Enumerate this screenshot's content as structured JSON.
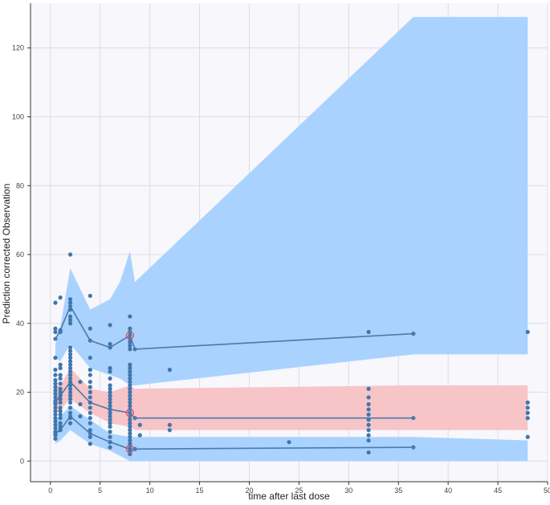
{
  "colors": {
    "background": "#ffffff",
    "plot_background": "#f7f7fc",
    "grid": "#dcdce6",
    "outer_band": "#a9d2ff",
    "median_band": "#f7c4c8",
    "line": "#4a7aab",
    "point": "#3f77ad",
    "outlier": "#e05060"
  },
  "chart_data": {
    "type": "scatter",
    "title": "",
    "xlabel": "time after last dose",
    "ylabel": "Prediction corrected Observation",
    "xlim": [
      -2,
      50
    ],
    "ylim": [
      -6,
      133
    ],
    "xticks": [
      0,
      5,
      10,
      15,
      20,
      25,
      30,
      35,
      40,
      45,
      50
    ],
    "yticks": [
      0,
      20,
      40,
      60,
      80,
      100,
      120
    ],
    "grid": true,
    "legend": "none",
    "bands": [
      {
        "name": "",
        "color": "#a9d2ff",
        "x": [
          0.5,
          1,
          2,
          4,
          6,
          7,
          8,
          8.5,
          36.5,
          48
        ],
        "upper": [
          34,
          39,
          56,
          44,
          47,
          52,
          61,
          52,
          129,
          129
        ],
        "lower": [
          30,
          29,
          34,
          27,
          25,
          24,
          22,
          22,
          31,
          31
        ]
      },
      {
        "name": "",
        "color": "#f7c4c8",
        "x": [
          0.5,
          1,
          2,
          4,
          6,
          8,
          8.5,
          36.5,
          48
        ],
        "upper": [
          22,
          22,
          27,
          21,
          20,
          22,
          21,
          22,
          22
        ],
        "lower": [
          14,
          15,
          18,
          14,
          11,
          10,
          9,
          9,
          9
        ]
      },
      {
        "name": "",
        "color": "#a9d2ff",
        "x": [
          0.5,
          1,
          2,
          4,
          6,
          8,
          8.5,
          36.5,
          48
        ],
        "upper": [
          12,
          13,
          16,
          12,
          8,
          7,
          7,
          7,
          6
        ],
        "lower": [
          5,
          6,
          9,
          5,
          3,
          0,
          0,
          0,
          0
        ]
      }
    ],
    "lines": [
      {
        "name": "",
        "x": [
          0.5,
          1,
          2,
          4,
          6,
          8,
          8.5,
          36.5
        ],
        "y": [
          35.5,
          38,
          45,
          35,
          33,
          36.5,
          32.5,
          37
        ]
      },
      {
        "name": "",
        "x": [
          0.5,
          1,
          2,
          4,
          6,
          8,
          8.5,
          36.5
        ],
        "y": [
          17,
          19,
          23,
          17,
          15,
          14,
          12.5,
          12.5
        ]
      },
      {
        "name": "",
        "x": [
          0.5,
          1,
          2,
          4,
          6,
          8,
          8.5,
          36.5
        ],
        "y": [
          8,
          9,
          13,
          8,
          5.5,
          3.5,
          3.5,
          4
        ]
      }
    ],
    "outliers": [
      {
        "x": 8,
        "y": 36.5
      },
      {
        "x": 8,
        "y": 14
      },
      {
        "x": 8,
        "y": 3.5
      }
    ],
    "points": [
      {
        "x": 0.5,
        "y": 46
      },
      {
        "x": 0.5,
        "y": 38.5
      },
      {
        "x": 0.5,
        "y": 37.5
      },
      {
        "x": 0.5,
        "y": 30
      },
      {
        "x": 0.5,
        "y": 26.5
      },
      {
        "x": 0.5,
        "y": 25
      },
      {
        "x": 0.5,
        "y": 23.5
      },
      {
        "x": 0.5,
        "y": 22.5
      },
      {
        "x": 0.5,
        "y": 21.5
      },
      {
        "x": 0.5,
        "y": 20.5
      },
      {
        "x": 0.5,
        "y": 19.5
      },
      {
        "x": 0.5,
        "y": 18.5
      },
      {
        "x": 0.5,
        "y": 17.5
      },
      {
        "x": 0.5,
        "y": 16.5
      },
      {
        "x": 0.5,
        "y": 15.5
      },
      {
        "x": 0.5,
        "y": 14.5
      },
      {
        "x": 0.5,
        "y": 13.5
      },
      {
        "x": 0.5,
        "y": 12.5
      },
      {
        "x": 0.5,
        "y": 11.5
      },
      {
        "x": 0.5,
        "y": 10.5
      },
      {
        "x": 0.5,
        "y": 9.5
      },
      {
        "x": 0.5,
        "y": 8.5
      },
      {
        "x": 0.5,
        "y": 7.5
      },
      {
        "x": 0.5,
        "y": 6.5
      },
      {
        "x": 1,
        "y": 47.5
      },
      {
        "x": 1,
        "y": 38
      },
      {
        "x": 1,
        "y": 37.5
      },
      {
        "x": 1,
        "y": 28
      },
      {
        "x": 1,
        "y": 27
      },
      {
        "x": 1,
        "y": 25
      },
      {
        "x": 1,
        "y": 24
      },
      {
        "x": 1,
        "y": 22.5
      },
      {
        "x": 1,
        "y": 21
      },
      {
        "x": 1,
        "y": 20
      },
      {
        "x": 1,
        "y": 19
      },
      {
        "x": 1,
        "y": 18
      },
      {
        "x": 1,
        "y": 17
      },
      {
        "x": 1,
        "y": 15.5
      },
      {
        "x": 1,
        "y": 14.5
      },
      {
        "x": 1,
        "y": 13.5
      },
      {
        "x": 1,
        "y": 12.5
      },
      {
        "x": 1,
        "y": 11
      },
      {
        "x": 1,
        "y": 10
      },
      {
        "x": 1,
        "y": 9
      },
      {
        "x": 2,
        "y": 60
      },
      {
        "x": 2,
        "y": 47
      },
      {
        "x": 2,
        "y": 46
      },
      {
        "x": 2,
        "y": 44
      },
      {
        "x": 2,
        "y": 42
      },
      {
        "x": 2,
        "y": 41
      },
      {
        "x": 2,
        "y": 40
      },
      {
        "x": 2,
        "y": 33
      },
      {
        "x": 2,
        "y": 32
      },
      {
        "x": 2,
        "y": 31
      },
      {
        "x": 2,
        "y": 30
      },
      {
        "x": 2,
        "y": 29
      },
      {
        "x": 2,
        "y": 28
      },
      {
        "x": 2,
        "y": 27
      },
      {
        "x": 2,
        "y": 26
      },
      {
        "x": 2,
        "y": 25
      },
      {
        "x": 2,
        "y": 24
      },
      {
        "x": 2,
        "y": 23
      },
      {
        "x": 2,
        "y": 22
      },
      {
        "x": 2,
        "y": 21
      },
      {
        "x": 2,
        "y": 20
      },
      {
        "x": 2,
        "y": 19
      },
      {
        "x": 2,
        "y": 18
      },
      {
        "x": 2,
        "y": 17
      },
      {
        "x": 2,
        "y": 15.5
      },
      {
        "x": 2,
        "y": 14
      },
      {
        "x": 2,
        "y": 12.5
      },
      {
        "x": 2,
        "y": 11
      },
      {
        "x": 3,
        "y": 23
      },
      {
        "x": 3,
        "y": 16.5
      },
      {
        "x": 3,
        "y": 13
      },
      {
        "x": 4,
        "y": 48
      },
      {
        "x": 4,
        "y": 38.5
      },
      {
        "x": 4,
        "y": 30
      },
      {
        "x": 4,
        "y": 26.5
      },
      {
        "x": 4,
        "y": 25
      },
      {
        "x": 4,
        "y": 23
      },
      {
        "x": 4,
        "y": 21.5
      },
      {
        "x": 4,
        "y": 20
      },
      {
        "x": 4,
        "y": 18.5
      },
      {
        "x": 4,
        "y": 17
      },
      {
        "x": 4,
        "y": 15.5
      },
      {
        "x": 4,
        "y": 14
      },
      {
        "x": 4,
        "y": 12.5
      },
      {
        "x": 4,
        "y": 11
      },
      {
        "x": 4,
        "y": 9
      },
      {
        "x": 4,
        "y": 7
      },
      {
        "x": 4,
        "y": 5
      },
      {
        "x": 6,
        "y": 39.5
      },
      {
        "x": 6,
        "y": 34
      },
      {
        "x": 6,
        "y": 33
      },
      {
        "x": 6,
        "y": 27
      },
      {
        "x": 6,
        "y": 26
      },
      {
        "x": 6,
        "y": 24
      },
      {
        "x": 6,
        "y": 22
      },
      {
        "x": 6,
        "y": 21
      },
      {
        "x": 6,
        "y": 20
      },
      {
        "x": 6,
        "y": 19
      },
      {
        "x": 6,
        "y": 18
      },
      {
        "x": 6,
        "y": 17
      },
      {
        "x": 6,
        "y": 16
      },
      {
        "x": 6,
        "y": 15
      },
      {
        "x": 6,
        "y": 14
      },
      {
        "x": 6,
        "y": 13
      },
      {
        "x": 6,
        "y": 12
      },
      {
        "x": 6,
        "y": 11
      },
      {
        "x": 6,
        "y": 10
      },
      {
        "x": 6,
        "y": 8.5
      },
      {
        "x": 6,
        "y": 7
      },
      {
        "x": 6,
        "y": 5.5
      },
      {
        "x": 6,
        "y": 4
      },
      {
        "x": 8,
        "y": 42
      },
      {
        "x": 8,
        "y": 38.5
      },
      {
        "x": 8,
        "y": 37.5
      },
      {
        "x": 8,
        "y": 35.5
      },
      {
        "x": 8,
        "y": 34.5
      },
      {
        "x": 8,
        "y": 33.5
      },
      {
        "x": 8,
        "y": 32.5
      },
      {
        "x": 8,
        "y": 28
      },
      {
        "x": 8,
        "y": 27
      },
      {
        "x": 8,
        "y": 26
      },
      {
        "x": 8,
        "y": 25
      },
      {
        "x": 8,
        "y": 24
      },
      {
        "x": 8,
        "y": 23
      },
      {
        "x": 8,
        "y": 22
      },
      {
        "x": 8,
        "y": 21
      },
      {
        "x": 8,
        "y": 20
      },
      {
        "x": 8,
        "y": 19
      },
      {
        "x": 8,
        "y": 18
      },
      {
        "x": 8,
        "y": 17
      },
      {
        "x": 8,
        "y": 16
      },
      {
        "x": 8,
        "y": 15
      },
      {
        "x": 8,
        "y": 13
      },
      {
        "x": 8,
        "y": 12
      },
      {
        "x": 8,
        "y": 11
      },
      {
        "x": 8,
        "y": 10
      },
      {
        "x": 8,
        "y": 9
      },
      {
        "x": 8,
        "y": 8
      },
      {
        "x": 8,
        "y": 7
      },
      {
        "x": 8,
        "y": 6
      },
      {
        "x": 8,
        "y": 5
      },
      {
        "x": 8,
        "y": 4.5
      },
      {
        "x": 8,
        "y": 3
      },
      {
        "x": 8,
        "y": 2
      },
      {
        "x": 9,
        "y": 10.5
      },
      {
        "x": 9,
        "y": 7.5
      },
      {
        "x": 12,
        "y": 26.5
      },
      {
        "x": 12,
        "y": 10.5
      },
      {
        "x": 12,
        "y": 9
      },
      {
        "x": 24,
        "y": 5.5
      },
      {
        "x": 32,
        "y": 37.5
      },
      {
        "x": 32,
        "y": 21
      },
      {
        "x": 32,
        "y": 18.5
      },
      {
        "x": 32,
        "y": 16.5
      },
      {
        "x": 32,
        "y": 15
      },
      {
        "x": 32,
        "y": 13.5
      },
      {
        "x": 32,
        "y": 12
      },
      {
        "x": 32,
        "y": 10.5
      },
      {
        "x": 32,
        "y": 9
      },
      {
        "x": 32,
        "y": 7.5
      },
      {
        "x": 32,
        "y": 6
      },
      {
        "x": 32,
        "y": 2.5
      },
      {
        "x": 48,
        "y": 37.5
      },
      {
        "x": 48,
        "y": 17
      },
      {
        "x": 48,
        "y": 15.5
      },
      {
        "x": 48,
        "y": 14
      },
      {
        "x": 48,
        "y": 12.5
      },
      {
        "x": 48,
        "y": 7
      }
    ]
  }
}
